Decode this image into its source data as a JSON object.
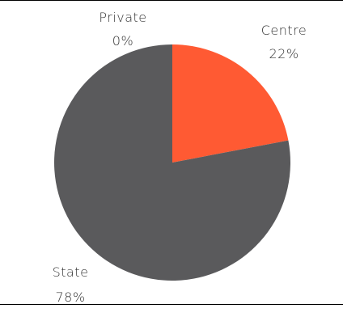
{
  "chart_data": {
    "type": "pie",
    "slices": [
      {
        "label": "Centre",
        "value": 22,
        "value_label": "22%",
        "color": "#ff5a33"
      },
      {
        "label": "State",
        "value": 78,
        "value_label": "78%",
        "color": "#5a5a5c"
      },
      {
        "label": "Private",
        "value": 0,
        "value_label": "0%",
        "color": "#5a5a5c"
      }
    ],
    "start_angle_deg": 0,
    "direction": "clockwise",
    "legend": "none",
    "title": ""
  }
}
